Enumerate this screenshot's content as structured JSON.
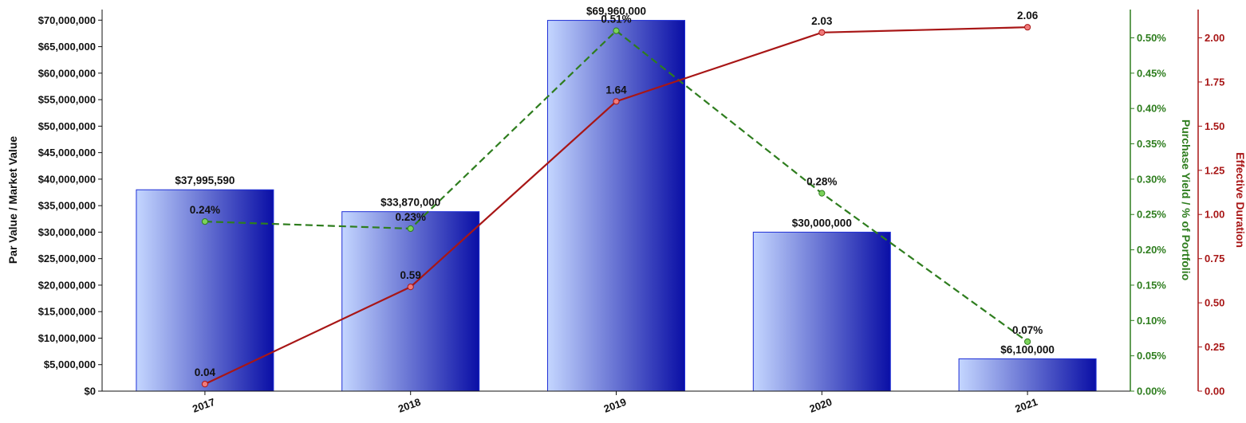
{
  "chart_data": {
    "type": "bar",
    "categories": [
      "2017",
      "2018",
      "2019",
      "2020",
      "2021"
    ],
    "bar_series": {
      "values": [
        37995590,
        33870000,
        69960000,
        30000000,
        6100000
      ],
      "labels": [
        "$37,995,590",
        "$33,870,000",
        "$69,960,000",
        "$30,000,000",
        "$6,100,000"
      ],
      "color_light": "#c4d6ff",
      "color_dark": "#0a0fa6",
      "border_color": "#1f2fd6"
    },
    "yield_series": {
      "type": "line",
      "style": "dashed",
      "values": [
        0.24,
        0.23,
        0.51,
        0.28,
        0.07
      ],
      "labels": [
        "0.24%",
        "0.23%",
        "0.51%",
        "0.28%",
        "0.07%"
      ],
      "color": "#2e7d1e",
      "marker_color": "#7bd35a"
    },
    "duration_series": {
      "type": "line",
      "style": "solid",
      "values": [
        0.04,
        0.59,
        1.64,
        2.03,
        2.06
      ],
      "labels": [
        "0.04",
        "0.59",
        "1.64",
        "2.03",
        "2.06"
      ],
      "color": "#a81616",
      "marker_color": "#f07a7a"
    },
    "left_axis": {
      "label": "Par Value / Market Value",
      "ylim": [
        0,
        72000000
      ],
      "ticks": [
        0,
        5000000,
        10000000,
        15000000,
        20000000,
        25000000,
        30000000,
        35000000,
        40000000,
        45000000,
        50000000,
        55000000,
        60000000,
        65000000,
        70000000
      ],
      "tick_labels": [
        "$0",
        "$5,000,000",
        "$10,000,000",
        "$15,000,000",
        "$20,000,000",
        "$25,000,000",
        "$30,000,000",
        "$35,000,000",
        "$40,000,000",
        "$45,000,000",
        "$50,000,000",
        "$55,000,000",
        "$60,000,000",
        "$65,000,000",
        "$70,000,000"
      ]
    },
    "right_axis_1": {
      "label": "Purchase Yield / % of Portfolio",
      "color": "#2e7d1e",
      "ylim": [
        0,
        0.54
      ],
      "ticks": [
        0,
        0.05,
        0.1,
        0.15,
        0.2,
        0.25,
        0.3,
        0.35,
        0.4,
        0.45,
        0.5
      ],
      "tick_labels": [
        "0.00%",
        "0.05%",
        "0.10%",
        "0.15%",
        "0.20%",
        "0.25%",
        "0.30%",
        "0.35%",
        "0.40%",
        "0.45%",
        "0.50%"
      ]
    },
    "right_axis_2": {
      "label": "Effective Duration",
      "color": "#a81616",
      "ylim": [
        0,
        2.16
      ],
      "ticks": [
        0,
        0.25,
        0.5,
        0.75,
        1.0,
        1.25,
        1.5,
        1.75,
        2.0
      ],
      "tick_labels": [
        "0.00",
        "0.25",
        "0.50",
        "0.75",
        "1.00",
        "1.25",
        "1.50",
        "1.75",
        "2.00"
      ]
    },
    "grid": false
  }
}
